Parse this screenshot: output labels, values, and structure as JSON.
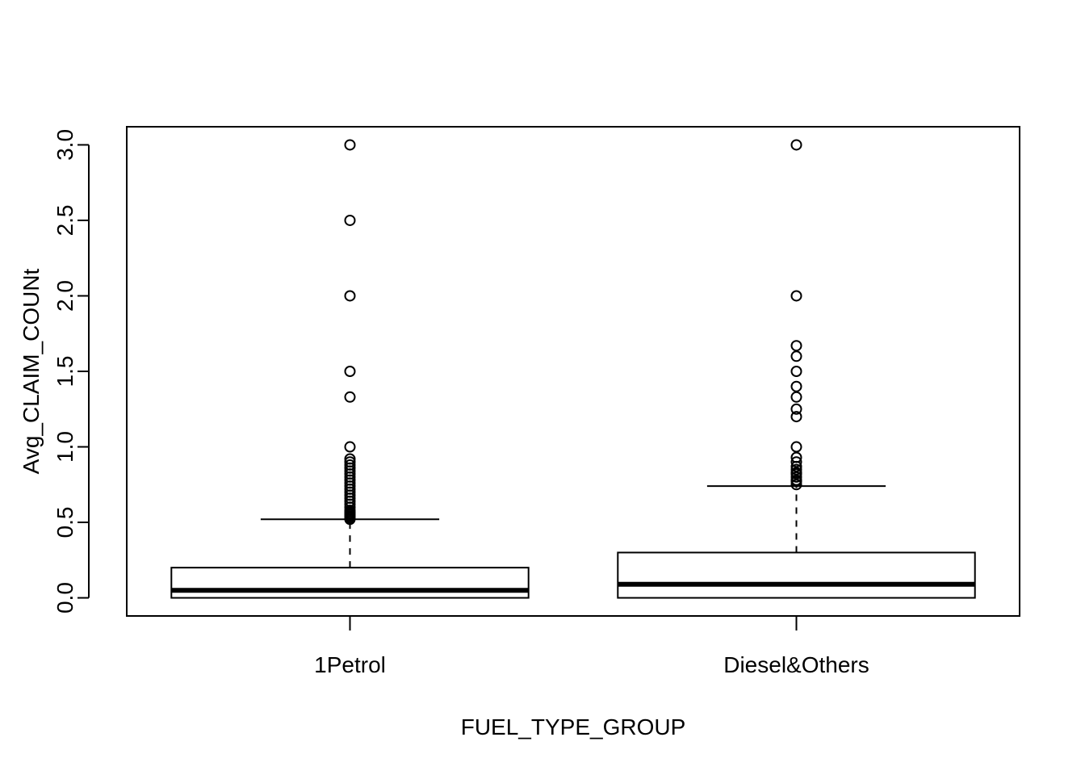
{
  "chart_data": {
    "type": "boxplot",
    "xlabel": "FUEL_TYPE_GROUP",
    "ylabel": "Avg_CLAIM_COUNt",
    "ylim": [
      -0.12,
      3.12
    ],
    "yticks": [
      0.0,
      0.5,
      1.0,
      1.5,
      2.0,
      2.5,
      3.0
    ],
    "ytick_labels": [
      "0.0",
      "0.5",
      "1.0",
      "1.5",
      "2.0",
      "2.5",
      "3.0"
    ],
    "grid": false,
    "categories": [
      "1Petrol",
      "Diesel&Others"
    ],
    "boxes": [
      {
        "category": "1Petrol",
        "min": 0.0,
        "q1": 0.0,
        "median": 0.05,
        "q3": 0.2,
        "whisker_high": 0.52,
        "outliers": [
          0.52,
          0.53,
          0.54,
          0.55,
          0.56,
          0.57,
          0.58,
          0.6,
          0.62,
          0.64,
          0.66,
          0.68,
          0.7,
          0.72,
          0.74,
          0.76,
          0.78,
          0.8,
          0.82,
          0.84,
          0.86,
          0.88,
          0.9,
          0.92,
          1.0,
          1.33,
          1.5,
          2.0,
          2.5,
          3.0
        ]
      },
      {
        "category": "Diesel&Others",
        "min": 0.0,
        "q1": 0.0,
        "median": 0.09,
        "q3": 0.3,
        "whisker_high": 0.74,
        "outliers": [
          0.75,
          0.77,
          0.78,
          0.8,
          0.82,
          0.83,
          0.85,
          0.87,
          0.9,
          0.93,
          1.0,
          1.2,
          1.25,
          1.33,
          1.4,
          1.5,
          1.6,
          1.67,
          2.0,
          3.0
        ]
      }
    ]
  }
}
